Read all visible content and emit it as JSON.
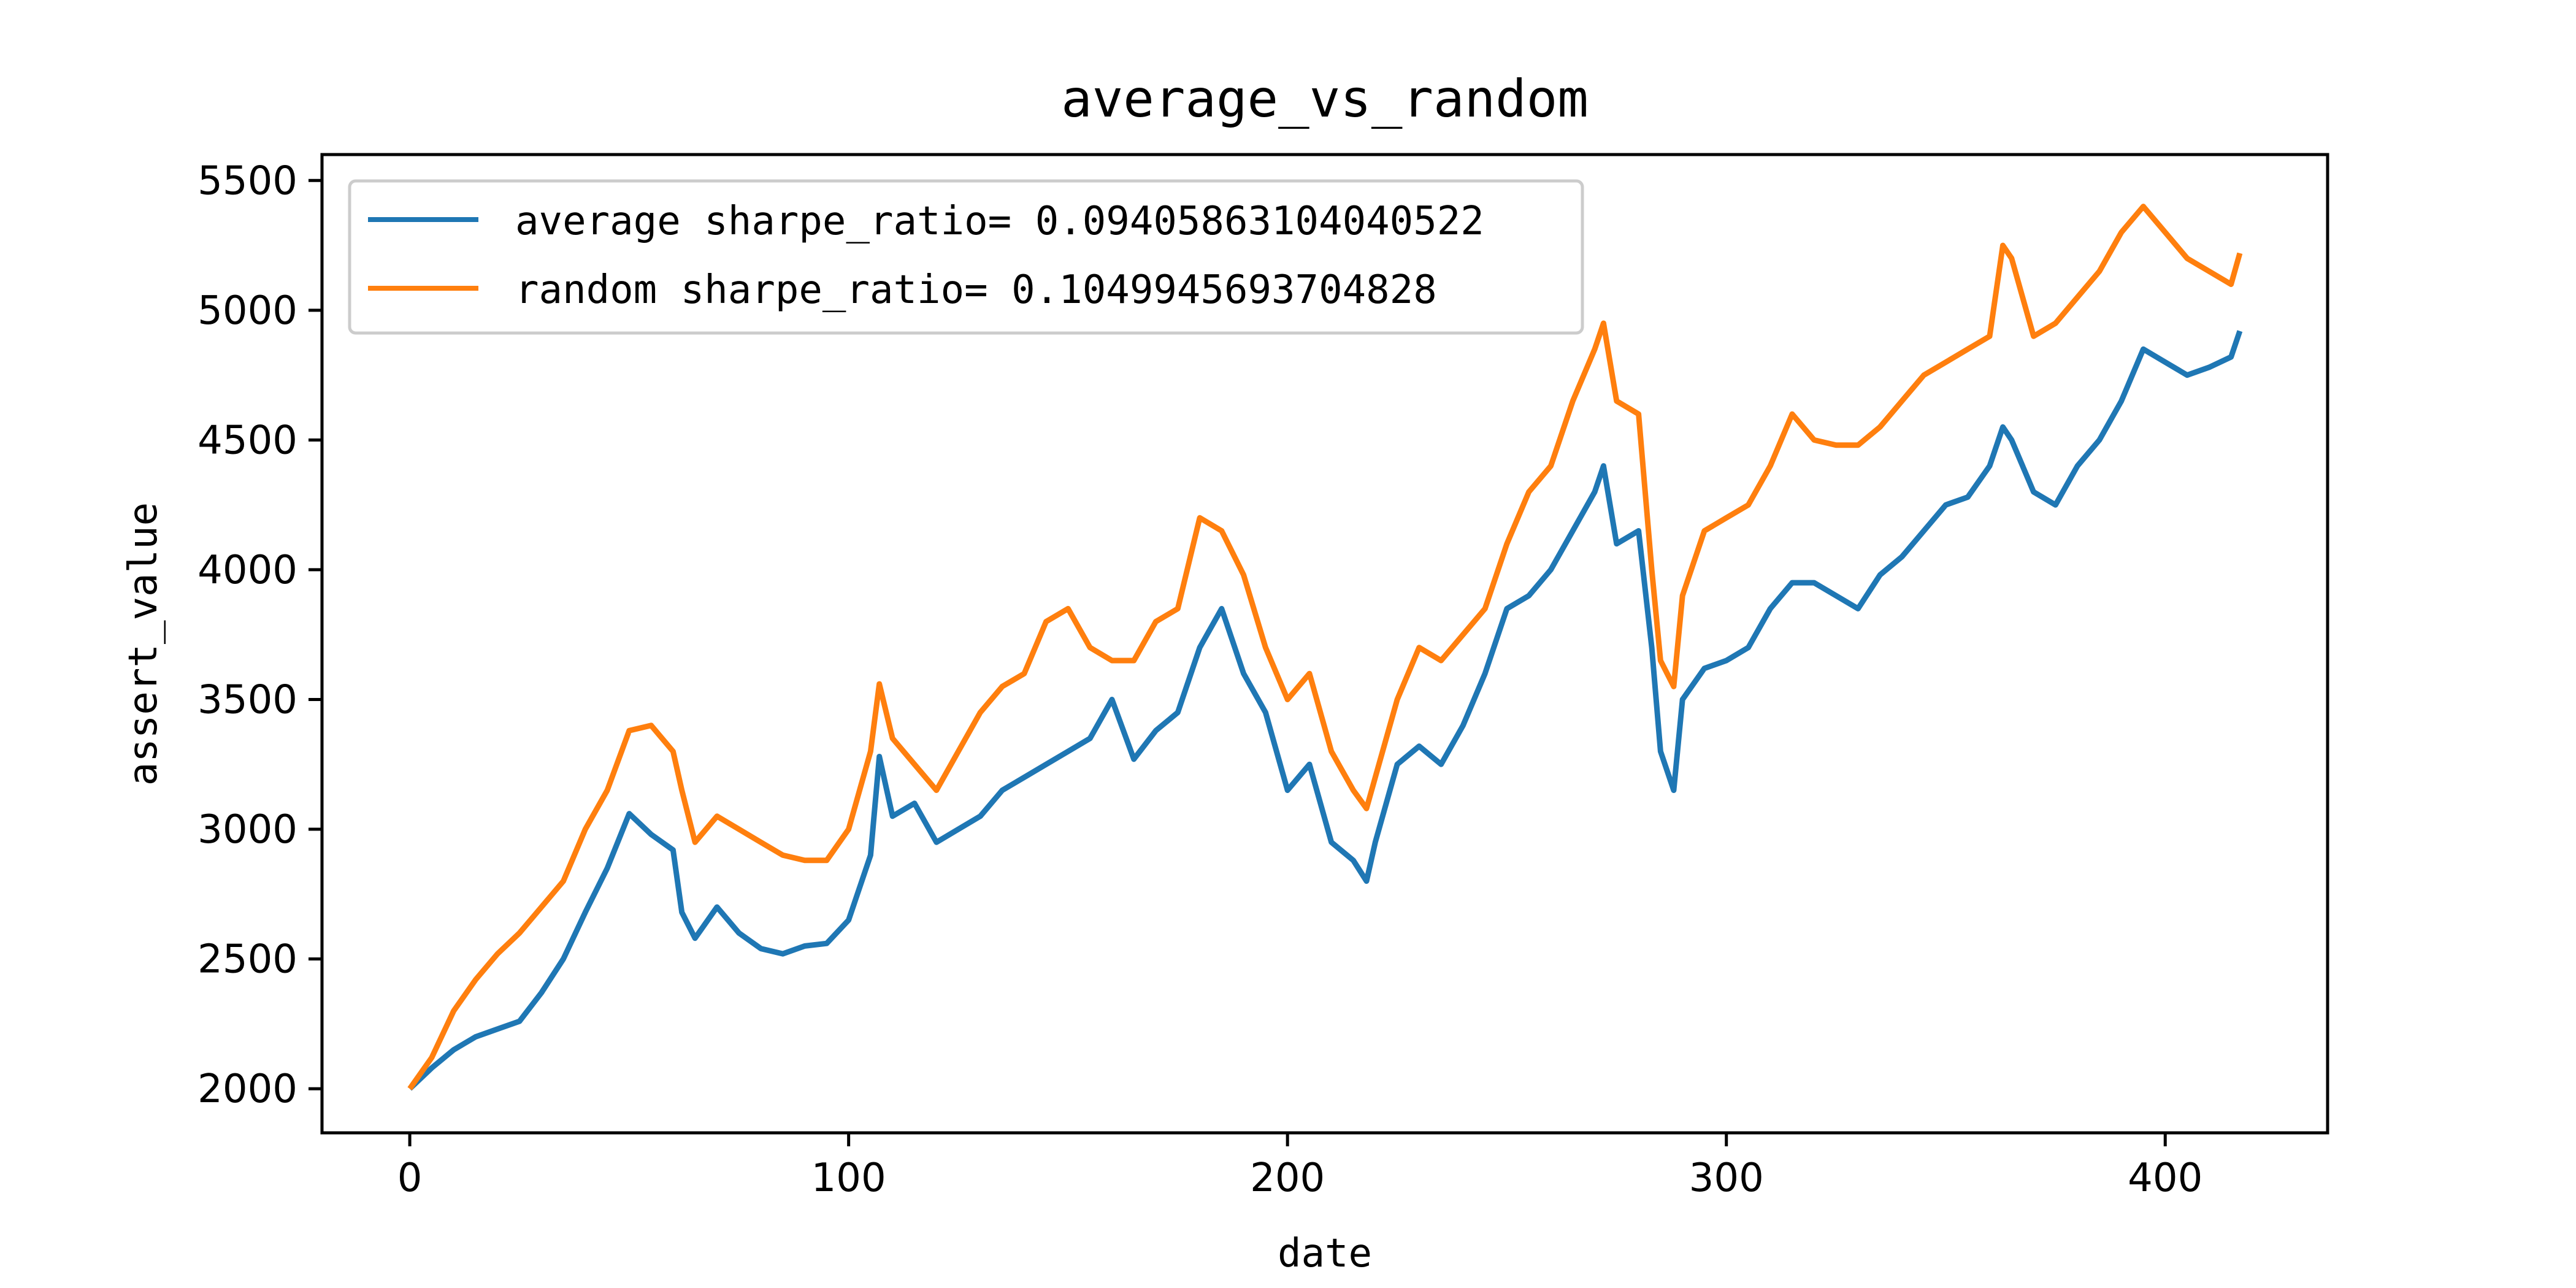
{
  "chart_data": {
    "type": "line",
    "title": "average_vs_random",
    "xlabel": "date",
    "ylabel": "assert_value",
    "xlim": [
      -20,
      437
    ],
    "ylim": [
      1830,
      5600
    ],
    "xticks": [
      0,
      100,
      200,
      300,
      400
    ],
    "yticks": [
      2000,
      2500,
      3000,
      3500,
      4000,
      4500,
      5000,
      5500
    ],
    "grid": false,
    "legend": "top-left",
    "series": [
      {
        "name": "average sharpe_ratio= 0.09405863104040522",
        "color": "#1f77b4",
        "x": [
          0,
          5,
          10,
          15,
          20,
          25,
          30,
          35,
          40,
          45,
          50,
          55,
          60,
          62,
          65,
          70,
          75,
          80,
          85,
          90,
          95,
          100,
          105,
          107,
          110,
          115,
          120,
          125,
          130,
          135,
          140,
          145,
          150,
          155,
          160,
          165,
          170,
          175,
          180,
          185,
          190,
          195,
          200,
          205,
          210,
          215,
          218,
          220,
          225,
          230,
          235,
          240,
          245,
          250,
          255,
          260,
          265,
          270,
          272,
          275,
          280,
          283,
          285,
          288,
          290,
          295,
          300,
          305,
          310,
          315,
          320,
          325,
          330,
          335,
          340,
          345,
          350,
          355,
          360,
          363,
          365,
          370,
          375,
          380,
          385,
          390,
          395,
          400,
          405,
          410,
          415,
          417
        ],
        "y": [
          2000,
          2080,
          2150,
          2200,
          2230,
          2260,
          2370,
          2500,
          2680,
          2850,
          3060,
          2980,
          2920,
          2680,
          2580,
          2700,
          2600,
          2540,
          2520,
          2550,
          2560,
          2650,
          2900,
          3280,
          3050,
          3100,
          2950,
          3000,
          3050,
          3150,
          3200,
          3250,
          3300,
          3350,
          3500,
          3270,
          3380,
          3450,
          3700,
          3850,
          3600,
          3450,
          3150,
          3250,
          2950,
          2880,
          2800,
          2950,
          3250,
          3320,
          3250,
          3400,
          3600,
          3850,
          3900,
          4000,
          4150,
          4300,
          4400,
          4100,
          4150,
          3700,
          3300,
          3150,
          3500,
          3620,
          3650,
          3700,
          3850,
          3950,
          3950,
          3900,
          3850,
          3980,
          4050,
          4150,
          4250,
          4280,
          4400,
          4550,
          4500,
          4300,
          4250,
          4400,
          4500,
          4650,
          4850,
          4800,
          4750,
          4780,
          4820,
          4920
        ]
      },
      {
        "name": "random sharpe_ratio= 0.1049945693704828",
        "color": "#ff7f0e",
        "x": [
          0,
          5,
          10,
          15,
          20,
          25,
          30,
          35,
          40,
          45,
          50,
          55,
          60,
          62,
          65,
          70,
          75,
          80,
          85,
          90,
          95,
          100,
          105,
          107,
          110,
          115,
          120,
          125,
          130,
          135,
          140,
          145,
          150,
          155,
          160,
          165,
          170,
          175,
          180,
          185,
          190,
          195,
          200,
          205,
          210,
          215,
          218,
          220,
          225,
          230,
          235,
          240,
          245,
          250,
          255,
          260,
          265,
          270,
          272,
          275,
          280,
          283,
          285,
          288,
          290,
          295,
          300,
          305,
          310,
          315,
          320,
          325,
          330,
          335,
          340,
          345,
          350,
          355,
          360,
          363,
          365,
          370,
          375,
          380,
          385,
          390,
          395,
          400,
          405,
          410,
          415,
          417
        ],
        "y": [
          2000,
          2120,
          2300,
          2420,
          2520,
          2600,
          2700,
          2800,
          3000,
          3150,
          3380,
          3400,
          3300,
          3150,
          2950,
          3050,
          3000,
          2950,
          2900,
          2880,
          2880,
          3000,
          3300,
          3560,
          3350,
          3250,
          3150,
          3300,
          3450,
          3550,
          3600,
          3800,
          3850,
          3700,
          3650,
          3650,
          3800,
          3850,
          4200,
          4150,
          3980,
          3700,
          3500,
          3600,
          3300,
          3150,
          3080,
          3200,
          3500,
          3700,
          3650,
          3750,
          3850,
          4100,
          4300,
          4400,
          4650,
          4850,
          4950,
          4650,
          4600,
          4000,
          3650,
          3550,
          3900,
          4150,
          4200,
          4250,
          4400,
          4600,
          4500,
          4480,
          4480,
          4550,
          4650,
          4750,
          4800,
          4850,
          4900,
          5250,
          5200,
          4900,
          4950,
          5050,
          5150,
          5300,
          5400,
          5300,
          5200,
          5150,
          5100,
          5220
        ]
      }
    ]
  }
}
